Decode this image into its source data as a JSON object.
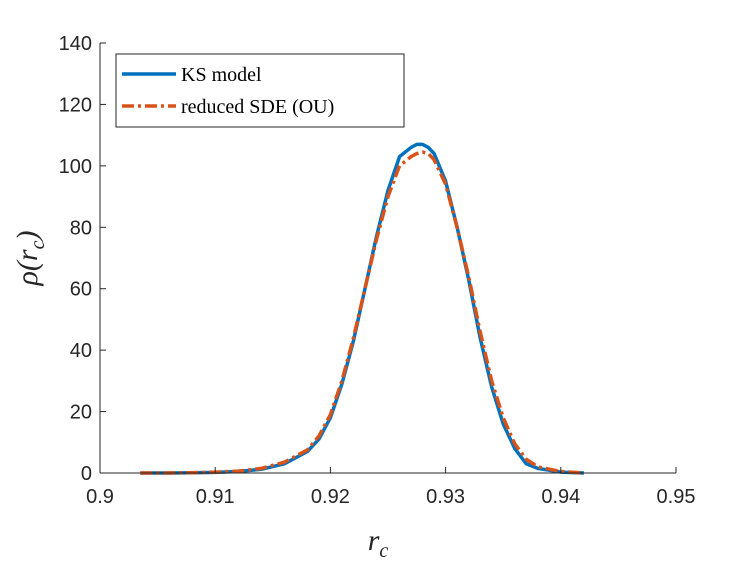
{
  "chart_data": {
    "type": "line",
    "title": "",
    "xlabel": "r",
    "xlabel_sub": "c",
    "ylabel_open": "ρ(r",
    "ylabel_sub": "c",
    "ylabel_close": ")",
    "xlim": [
      0.9,
      0.95
    ],
    "ylim": [
      0,
      140
    ],
    "xticks": [
      0.9,
      0.91,
      0.92,
      0.93,
      0.94,
      0.95
    ],
    "xtick_labels": [
      "0.9",
      "0.91",
      "0.92",
      "0.93",
      "0.94",
      "0.95"
    ],
    "yticks": [
      0,
      20,
      40,
      60,
      80,
      100,
      120,
      140
    ],
    "ytick_labels": [
      "0",
      "20",
      "40",
      "60",
      "80",
      "100",
      "120",
      "140"
    ],
    "legend_position": "top-left",
    "series": [
      {
        "name": "KS model",
        "color": "#0072BD",
        "style": "solid",
        "x": [
          0.9035,
          0.906,
          0.908,
          0.91,
          0.912,
          0.914,
          0.916,
          0.918,
          0.919,
          0.92,
          0.921,
          0.922,
          0.923,
          0.924,
          0.925,
          0.926,
          0.927,
          0.9275,
          0.928,
          0.9285,
          0.929,
          0.93,
          0.931,
          0.932,
          0.933,
          0.934,
          0.935,
          0.936,
          0.937,
          0.938,
          0.94,
          0.942
        ],
        "y": [
          0,
          0,
          0.1,
          0.2,
          0.5,
          1.2,
          3,
          7,
          11,
          18,
          29,
          43,
          60,
          77,
          92,
          103,
          106,
          107,
          107,
          106,
          104,
          95,
          80,
          63,
          44,
          28,
          16,
          8,
          3,
          1.5,
          0.3,
          0
        ]
      },
      {
        "name": "reduced SDE (OU)",
        "color": "#D95319",
        "style": "dashdot",
        "x": [
          0.9035,
          0.906,
          0.908,
          0.91,
          0.912,
          0.914,
          0.916,
          0.918,
          0.919,
          0.92,
          0.921,
          0.922,
          0.923,
          0.924,
          0.925,
          0.926,
          0.927,
          0.9275,
          0.928,
          0.9285,
          0.929,
          0.93,
          0.931,
          0.932,
          0.933,
          0.934,
          0.935,
          0.936,
          0.937,
          0.938,
          0.94,
          0.942
        ],
        "y": [
          0,
          0,
          0.1,
          0.3,
          0.6,
          1.5,
          3.5,
          7.5,
          12,
          19,
          30,
          44,
          60,
          76,
          90,
          100,
          103,
          104,
          104.5,
          104,
          102,
          94,
          80,
          64,
          46,
          30,
          18,
          9.5,
          4.5,
          2,
          0.5,
          0
        ]
      }
    ]
  }
}
